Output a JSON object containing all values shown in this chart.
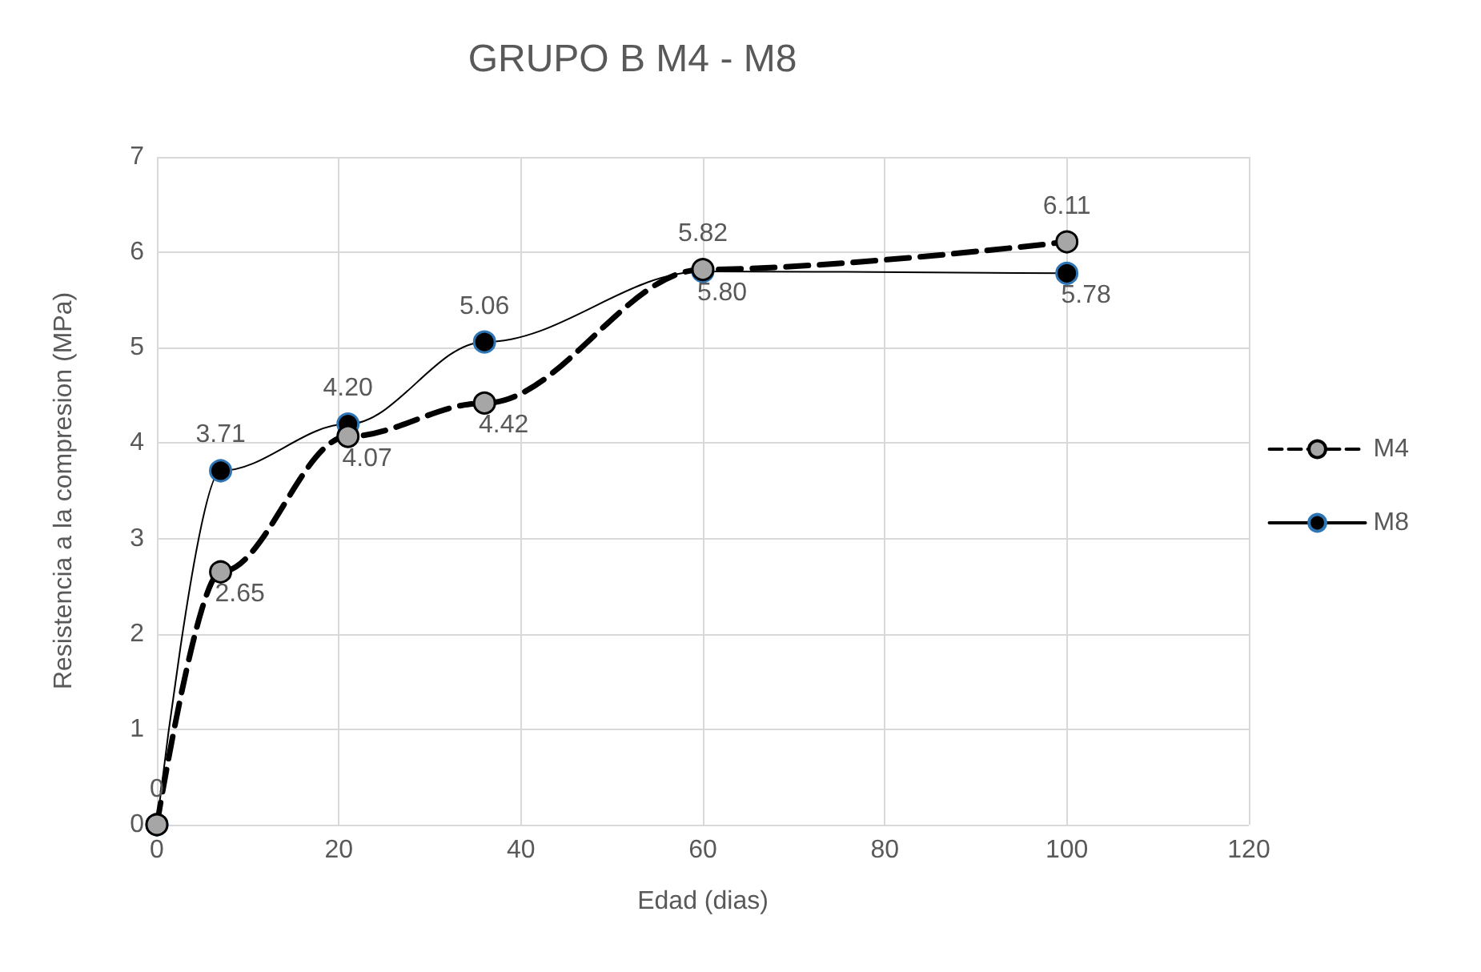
{
  "chart_data": {
    "type": "line",
    "title": "GRUPO B M4 - M8",
    "xlabel": "Edad (dias)",
    "ylabel": "Resistencia a la compresion (MPa)",
    "x": [
      0,
      7,
      21,
      36,
      60,
      100
    ],
    "series": [
      {
        "name": "M4",
        "color": "#000000",
        "line_style": "dashed",
        "values": [
          0,
          2.65,
          4.07,
          4.42,
          5.82,
          6.11
        ],
        "value_labels": [
          "0",
          "2.65",
          "4.07",
          "4.42",
          "5.82",
          "6.11"
        ]
      },
      {
        "name": "M8",
        "color": "#000000",
        "line_style": "solid",
        "values": [
          0,
          3.71,
          4.2,
          5.06,
          5.8,
          5.78
        ],
        "value_labels": [
          null,
          "3.71",
          "4.20",
          "5.06",
          "5.80",
          "5.78"
        ]
      }
    ],
    "xlim": [
      0,
      120
    ],
    "xticks": [
      0,
      20,
      40,
      60,
      80,
      100,
      120
    ],
    "ylim": [
      0,
      7
    ],
    "yticks": [
      0,
      1,
      2,
      3,
      4,
      5,
      6,
      7
    ],
    "grid": true,
    "legend": "right",
    "marker": "circle"
  }
}
